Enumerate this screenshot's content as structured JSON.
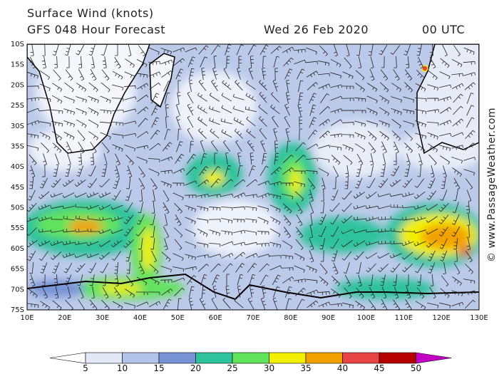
{
  "header": {
    "title": "Surface Wind (knots)",
    "model": "GFS 048 Hour Forecast",
    "date": "Wed 26 Feb 2020",
    "time": "00 UTC"
  },
  "latitude_labels": [
    "10S",
    "15S",
    "20S",
    "25S",
    "30S",
    "35S",
    "40S",
    "45S",
    "50S",
    "55S",
    "60S",
    "65S",
    "70S",
    "75S"
  ],
  "longitude_labels": [
    "10E",
    "20E",
    "30E",
    "40E",
    "50E",
    "60E",
    "70E",
    "80E",
    "90E",
    "100E",
    "110E",
    "120E",
    "130E"
  ],
  "legend": {
    "levels": [
      "5",
      "10",
      "15",
      "20",
      "25",
      "30",
      "35",
      "40",
      "45",
      "50"
    ],
    "colors": [
      "#ffffff",
      "#e3e8f6",
      "#b3c2e8",
      "#7793d6",
      "#2fc39c",
      "#62e35c",
      "#f2ef00",
      "#f2a100",
      "#e84444",
      "#b60000",
      "#c400c4"
    ]
  },
  "credit": "© www.PassageWeather.com"
}
